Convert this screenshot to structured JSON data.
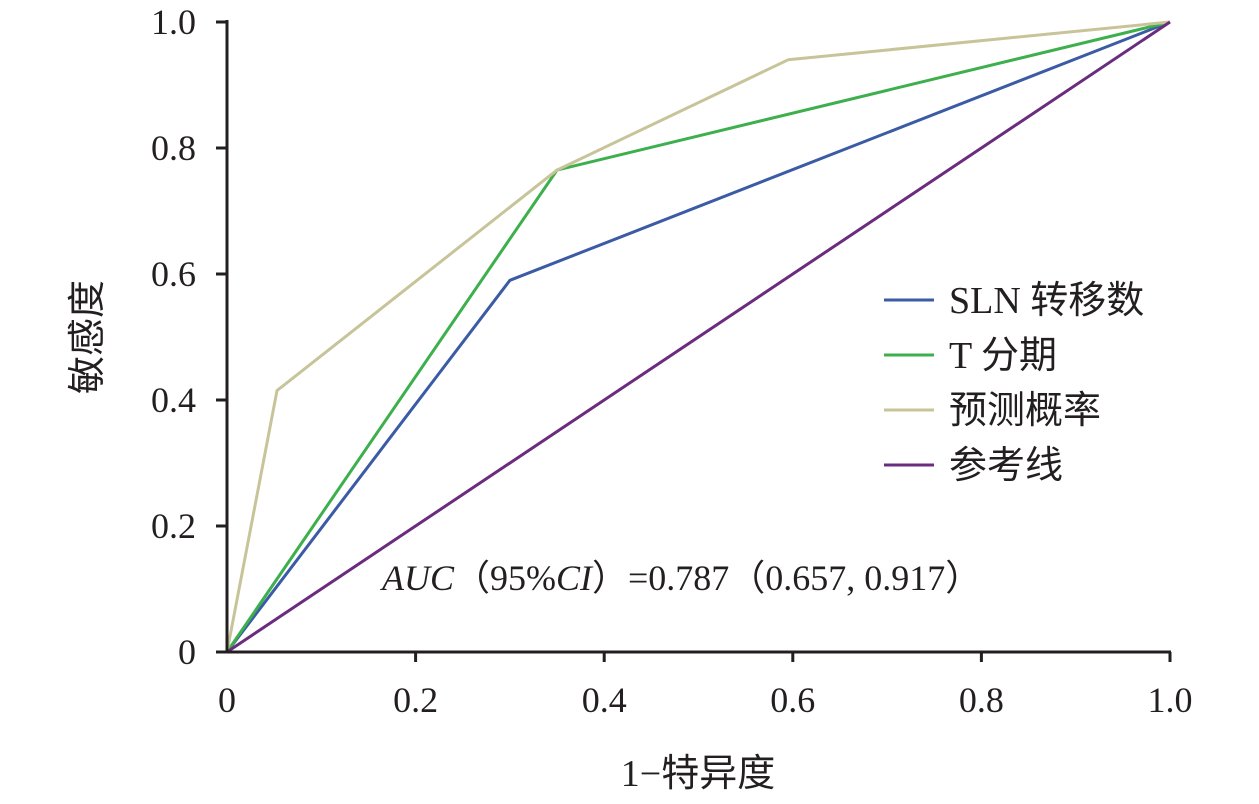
{
  "chart_data": {
    "type": "line",
    "xlabel": "1−特异度",
    "ylabel": "敏感度",
    "xlim": [
      0,
      1
    ],
    "ylim": [
      0,
      1
    ],
    "x_ticks": [
      "0",
      "0.2",
      "0.4",
      "0.6",
      "0.8",
      "1.0"
    ],
    "y_ticks": [
      "0",
      "0.2",
      "0.4",
      "0.6",
      "0.8",
      "1.0"
    ],
    "grid": false,
    "legend_position": "right",
    "series": [
      {
        "name": "SLN 转移数",
        "color": "#3b5ba5",
        "x": [
          0,
          0.3,
          1.0
        ],
        "y": [
          0,
          0.59,
          1.0
        ]
      },
      {
        "name": "T 分期",
        "color": "#3daf4c",
        "x": [
          0,
          0.35,
          1.0
        ],
        "y": [
          0,
          0.765,
          1.0
        ]
      },
      {
        "name": "预测概率",
        "color": "#c8c49a",
        "x": [
          0,
          0.053,
          0.35,
          0.595,
          1.0
        ],
        "y": [
          0,
          0.415,
          0.765,
          0.94,
          1.0
        ]
      },
      {
        "name": "参考线",
        "color": "#6b2c7e",
        "x": [
          0,
          1.0
        ],
        "y": [
          0,
          1.0
        ]
      }
    ],
    "annotation": {
      "italic_prefix": "AUC",
      "mid": "（95%",
      "italic_mid": "CI",
      "suffix": "）=0.787（0.657, 0.917）"
    }
  }
}
